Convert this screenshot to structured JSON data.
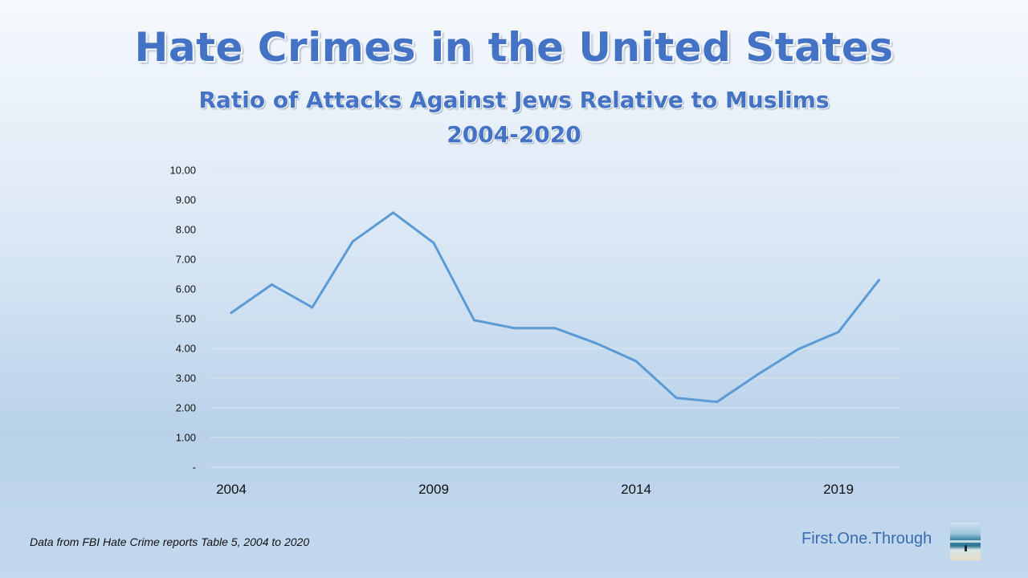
{
  "chart_data": {
    "type": "line",
    "title": "Hate Crimes in the United States",
    "subtitle_lines": [
      "Ratio of Attacks Against Jews Relative to Muslims",
      "2004-2020"
    ],
    "x": [
      2004,
      2005,
      2006,
      2007,
      2008,
      2009,
      2010,
      2011,
      2012,
      2013,
      2014,
      2015,
      2016,
      2017,
      2018,
      2019,
      2020
    ],
    "x_tick_labels": [
      "2004",
      "2009",
      "2014",
      "2019"
    ],
    "x_tick_values": [
      2004,
      2009,
      2014,
      2019
    ],
    "series": [
      {
        "values": [
          5.2,
          6.15,
          5.38,
          7.6,
          8.57,
          7.55,
          4.95,
          4.68,
          4.68,
          4.18,
          3.57,
          2.33,
          2.2,
          3.12,
          3.97,
          4.55,
          6.3
        ]
      }
    ],
    "ylim": [
      0,
      10
    ],
    "y_ticks": [
      0,
      1,
      2,
      3,
      4,
      5,
      6,
      7,
      8,
      9,
      10
    ],
    "y_tick_labels": [
      "-",
      "1.00",
      "2.00",
      "3.00",
      "4.00",
      "5.00",
      "6.00",
      "7.00",
      "8.00",
      "9.00",
      "10.00"
    ],
    "xlabel": "",
    "ylabel": "",
    "grid": true,
    "line_color": "#5b9bd5"
  },
  "footer": {
    "source": "Data from FBI Hate Crime reports Table 5, 2004 to 2020",
    "brand": "First.One.Through"
  }
}
